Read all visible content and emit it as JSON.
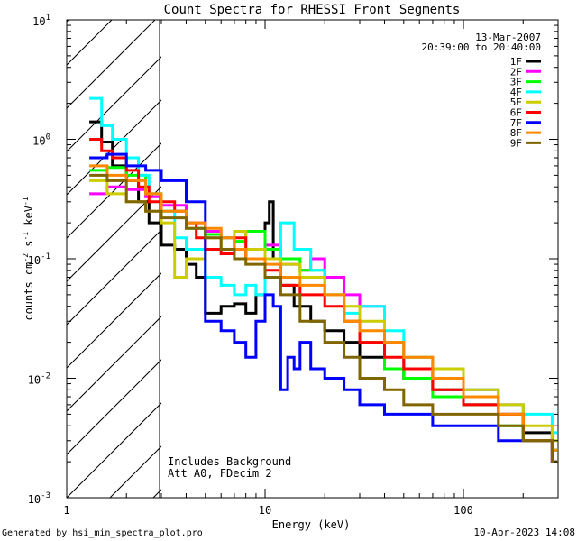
{
  "chart_data": {
    "type": "line",
    "title": "Count Spectra for RHESSI Front Segments",
    "xlabel": "Energy (keV)",
    "ylabel": "counts cm-2 s-1 keV-1",
    "xscale": "log",
    "yscale": "log",
    "xlim": [
      1,
      300
    ],
    "ylim": [
      0.001,
      10
    ],
    "x_ticks": [
      {
        "value": 1,
        "label": "1"
      },
      {
        "value": 10,
        "label": "10"
      },
      {
        "value": 100,
        "label": "100"
      }
    ],
    "y_ticks": [
      {
        "value": 0.001,
        "base": "10",
        "exp": "-3"
      },
      {
        "value": 0.01,
        "base": "10",
        "exp": "-2"
      },
      {
        "value": 0.1,
        "base": "10",
        "exp": "-1"
      },
      {
        "value": 1,
        "base": "10",
        "exp": "0"
      },
      {
        "value": 10,
        "base": "10",
        "exp": "1"
      }
    ],
    "excluded_region": {
      "from": 1,
      "to": 3
    },
    "date": "13-Mar-2007",
    "time_range": "20:39:00 to 20:40:00",
    "annotations": [
      "Includes Background",
      "Att A0, FDecim 2"
    ],
    "series": [
      {
        "name": "1F",
        "color": "#000000",
        "x": [
          1.3,
          1.5,
          1.7,
          2.0,
          2.3,
          2.6,
          3.0,
          3.5,
          4.0,
          4.5,
          5.0,
          6.0,
          7.0,
          8.0,
          9.0,
          10.0,
          10.5,
          11.0,
          12.0,
          14.0,
          17.0,
          20.0,
          25.0,
          30.0,
          40.0,
          50.0,
          70.0,
          100.0,
          150.0,
          200.0,
          280.0
        ],
        "values": [
          1.4,
          0.95,
          0.6,
          0.45,
          0.3,
          0.2,
          0.13,
          0.12,
          0.09,
          0.07,
          0.035,
          0.04,
          0.042,
          0.035,
          0.05,
          0.2,
          0.3,
          0.1,
          0.06,
          0.04,
          0.03,
          0.025,
          0.02,
          0.015,
          0.012,
          0.01,
          0.008,
          0.006,
          0.005,
          0.0035,
          0.0025
        ]
      },
      {
        "name": "2F",
        "color": "#ff00ff",
        "x": [
          1.3,
          1.6,
          2.0,
          2.5,
          3.0,
          4.0,
          5.0,
          6.0,
          7.0,
          8.0,
          10.0,
          12.0,
          15.0,
          17.0,
          20.0,
          25.0,
          30.0,
          40.0,
          50.0,
          70.0,
          100.0,
          150.0,
          200.0,
          280.0
        ],
        "values": [
          0.35,
          0.4,
          0.38,
          0.33,
          0.28,
          0.2,
          0.17,
          0.15,
          0.12,
          0.1,
          0.13,
          0.09,
          0.08,
          0.1,
          0.07,
          0.05,
          0.04,
          0.02,
          0.012,
          0.01,
          0.008,
          0.006,
          0.003,
          0.002
        ]
      },
      {
        "name": "3F",
        "color": "#00ff00",
        "x": [
          1.3,
          1.6,
          2.0,
          2.5,
          3.0,
          4.0,
          5.0,
          6.0,
          7.0,
          8.0,
          10.0,
          12.0,
          15.0,
          20.0,
          25.0,
          30.0,
          40.0,
          50.0,
          70.0,
          100.0,
          150.0,
          200.0,
          280.0
        ],
        "values": [
          0.55,
          0.58,
          0.5,
          0.35,
          0.25,
          0.18,
          0.16,
          0.15,
          0.14,
          0.17,
          0.12,
          0.1,
          0.08,
          0.05,
          0.03,
          0.02,
          0.012,
          0.01,
          0.007,
          0.006,
          0.004,
          0.003,
          0.0025
        ]
      },
      {
        "name": "4F",
        "color": "#00ffff",
        "x": [
          1.3,
          1.5,
          1.7,
          2.0,
          2.3,
          2.6,
          3.0,
          3.5,
          4.0,
          5.0,
          6.0,
          7.0,
          8.0,
          9.0,
          10.0,
          12.0,
          14.0,
          17.0,
          20.0,
          25.0,
          30.0,
          40.0,
          50.0,
          70.0,
          100.0,
          150.0,
          200.0,
          280.0
        ],
        "values": [
          2.2,
          1.3,
          1.0,
          0.7,
          0.5,
          0.35,
          0.25,
          0.15,
          0.12,
          0.07,
          0.06,
          0.05,
          0.06,
          0.05,
          0.1,
          0.2,
          0.12,
          0.08,
          0.05,
          0.035,
          0.04,
          0.025,
          0.015,
          0.012,
          0.008,
          0.006,
          0.005,
          0.0035
        ]
      },
      {
        "name": "5F",
        "color": "#cccc00",
        "x": [
          1.3,
          1.6,
          2.0,
          2.5,
          3.0,
          3.5,
          4.0,
          5.0,
          6.0,
          7.0,
          8.0,
          10.0,
          12.0,
          15.0,
          20.0,
          25.0,
          30.0,
          40.0,
          50.0,
          70.0,
          100.0,
          150.0,
          200.0,
          280.0
        ],
        "values": [
          0.45,
          0.35,
          0.3,
          0.25,
          0.2,
          0.07,
          0.1,
          0.15,
          0.12,
          0.17,
          0.12,
          0.1,
          0.09,
          0.07,
          0.05,
          0.04,
          0.03,
          0.02,
          0.015,
          0.012,
          0.008,
          0.006,
          0.004,
          0.003
        ]
      },
      {
        "name": "6F",
        "color": "#ff0000",
        "x": [
          1.3,
          1.5,
          1.7,
          2.0,
          2.3,
          2.6,
          3.0,
          3.5,
          4.0,
          4.5,
          5.0,
          6.0,
          7.0,
          8.0,
          10.0,
          12.0,
          15.0,
          20.0,
          25.0,
          30.0,
          40.0,
          50.0,
          70.0,
          100.0,
          150.0,
          200.0,
          280.0
        ],
        "values": [
          1.0,
          0.8,
          0.7,
          0.55,
          0.4,
          0.3,
          0.3,
          0.25,
          0.2,
          0.15,
          0.12,
          0.11,
          0.15,
          0.1,
          0.08,
          0.06,
          0.05,
          0.04,
          0.03,
          0.02,
          0.015,
          0.012,
          0.008,
          0.006,
          0.005,
          0.003,
          0.002
        ]
      },
      {
        "name": "7F",
        "color": "#0000ff",
        "x": [
          1.3,
          1.6,
          2.0,
          2.5,
          3.0,
          4.0,
          5.0,
          6.0,
          7.0,
          8.0,
          9.0,
          10.0,
          11.0,
          12.0,
          13.0,
          14.0,
          15.0,
          17.0,
          20.0,
          25.0,
          30.0,
          40.0,
          50.0,
          70.0,
          100.0,
          150.0,
          200.0,
          280.0
        ],
        "values": [
          0.7,
          0.75,
          0.6,
          0.55,
          0.45,
          0.3,
          0.03,
          0.025,
          0.02,
          0.015,
          0.03,
          0.05,
          0.04,
          0.008,
          0.015,
          0.012,
          0.02,
          0.012,
          0.01,
          0.008,
          0.006,
          0.005,
          0.005,
          0.004,
          0.004,
          0.003,
          0.003,
          0.002
        ]
      },
      {
        "name": "8F",
        "color": "#ff8800",
        "x": [
          1.3,
          1.6,
          2.0,
          2.5,
          3.0,
          4.0,
          5.0,
          6.0,
          7.0,
          8.0,
          10.0,
          12.0,
          15.0,
          20.0,
          25.0,
          30.0,
          40.0,
          50.0,
          70.0,
          100.0,
          150.0,
          200.0,
          280.0
        ],
        "values": [
          0.6,
          0.5,
          0.45,
          0.35,
          0.25,
          0.2,
          0.18,
          0.15,
          0.12,
          0.1,
          0.09,
          0.07,
          0.06,
          0.05,
          0.03,
          0.025,
          0.02,
          0.015,
          0.01,
          0.007,
          0.005,
          0.003,
          0.0025
        ]
      },
      {
        "name": "9F",
        "color": "#806600",
        "x": [
          1.3,
          1.6,
          2.0,
          2.5,
          3.0,
          4.0,
          5.0,
          6.0,
          7.0,
          8.0,
          10.0,
          12.0,
          15.0,
          20.0,
          25.0,
          30.0,
          40.0,
          50.0,
          70.0,
          100.0,
          150.0,
          200.0,
          280.0
        ],
        "values": [
          0.5,
          0.45,
          0.3,
          0.25,
          0.22,
          0.18,
          0.15,
          0.12,
          0.1,
          0.09,
          0.07,
          0.05,
          0.03,
          0.02,
          0.015,
          0.01,
          0.008,
          0.006,
          0.005,
          0.005,
          0.004,
          0.003,
          0.002
        ]
      }
    ]
  },
  "footer": {
    "generated_by": "Generated by hsi_min_spectra_plot.pro",
    "timestamp": "10-Apr-2023 14:08"
  }
}
